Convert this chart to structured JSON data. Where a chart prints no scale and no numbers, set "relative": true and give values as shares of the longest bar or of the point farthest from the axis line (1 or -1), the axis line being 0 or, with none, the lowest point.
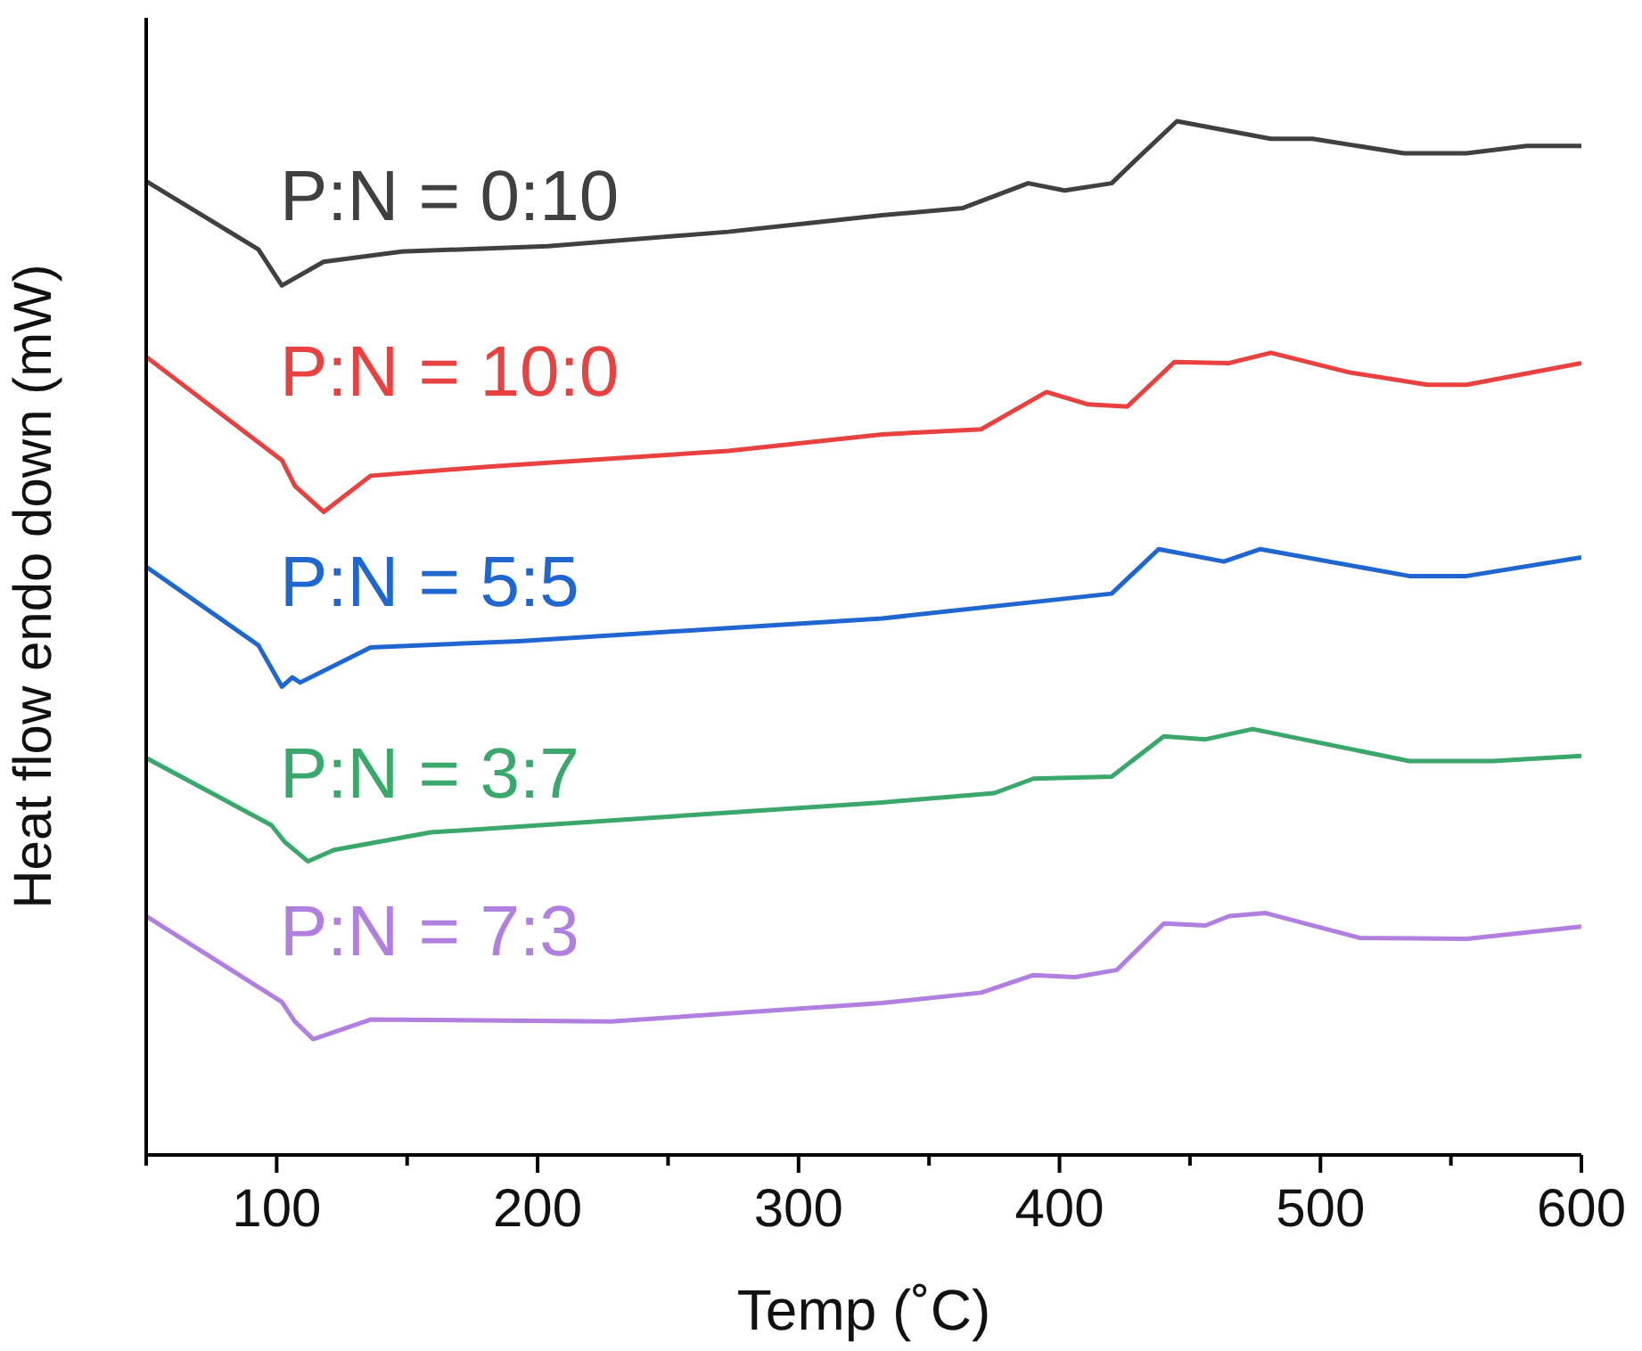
{
  "chart_data": {
    "type": "line",
    "relative": true,
    "xlabel": "Temp (˚C)",
    "ylabel": "Heat flow endo down (mW)",
    "xlim": [
      50,
      600
    ],
    "xticks": [
      {
        "value": 50,
        "label": null
      },
      100,
      {
        "value": 150,
        "label": null
      },
      200,
      {
        "value": 250,
        "label": null
      },
      300,
      {
        "value": 350,
        "label": null
      },
      400,
      {
        "value": 450,
        "label": null
      },
      500,
      {
        "value": 550,
        "label": null
      },
      600
    ],
    "marker": "none",
    "line_style": "solid",
    "series": [
      {
        "name": "P:N = 0:10",
        "color": "#404040",
        "x": [
          50,
          93,
          102,
          118,
          148,
          204,
          273,
          332,
          363,
          388,
          402,
          420,
          429,
          445,
          481,
          497,
          532,
          556,
          579,
          600
        ],
        "values": [
          0.942,
          0.876,
          0.841,
          0.864,
          0.874,
          0.879,
          0.893,
          0.909,
          0.916,
          0.94,
          0.933,
          0.94,
          0.962,
          1.0,
          0.983,
          0.983,
          0.969,
          0.969,
          0.976,
          0.976
        ]
      },
      {
        "name": "P:N = 10:0",
        "color": "#e8413f",
        "x": [
          50,
          102,
          107,
          118,
          136,
          182,
          273,
          332,
          370,
          395,
          411,
          426,
          444,
          465,
          481,
          511,
          541,
          556,
          600
        ],
        "values": [
          0.772,
          0.672,
          0.647,
          0.622,
          0.657,
          0.666,
          0.681,
          0.697,
          0.702,
          0.738,
          0.726,
          0.724,
          0.767,
          0.766,
          0.776,
          0.757,
          0.745,
          0.745,
          0.766
        ]
      },
      {
        "name": "P:N = 5:5",
        "color": "#1f66d1",
        "x": [
          50,
          93,
          102,
          106,
          109,
          136,
          193,
          332,
          420,
          438,
          463,
          477,
          534,
          556,
          600
        ],
        "values": [
          0.569,
          0.493,
          0.453,
          0.462,
          0.457,
          0.491,
          0.497,
          0.519,
          0.543,
          0.586,
          0.574,
          0.586,
          0.56,
          0.56,
          0.578
        ]
      },
      {
        "name": "P:N = 3:7",
        "color": "#3aa86b",
        "x": [
          50,
          98,
          103,
          112,
          122,
          159,
          332,
          375,
          390,
          420,
          440,
          456,
          474,
          534,
          566,
          600
        ],
        "values": [
          0.384,
          0.319,
          0.303,
          0.284,
          0.295,
          0.312,
          0.341,
          0.35,
          0.364,
          0.366,
          0.405,
          0.402,
          0.412,
          0.381,
          0.381,
          0.386
        ]
      },
      {
        "name": "P:N = 7:3",
        "color": "#b07fe0",
        "x": [
          50,
          102,
          107,
          114,
          136,
          228,
          332,
          370,
          390,
          406,
          422,
          440,
          456,
          465,
          479,
          515,
          556,
          600
        ],
        "values": [
          0.231,
          0.148,
          0.129,
          0.112,
          0.131,
          0.129,
          0.147,
          0.157,
          0.174,
          0.172,
          0.179,
          0.224,
          0.222,
          0.231,
          0.234,
          0.21,
          0.209,
          0.221
        ]
      }
    ]
  }
}
